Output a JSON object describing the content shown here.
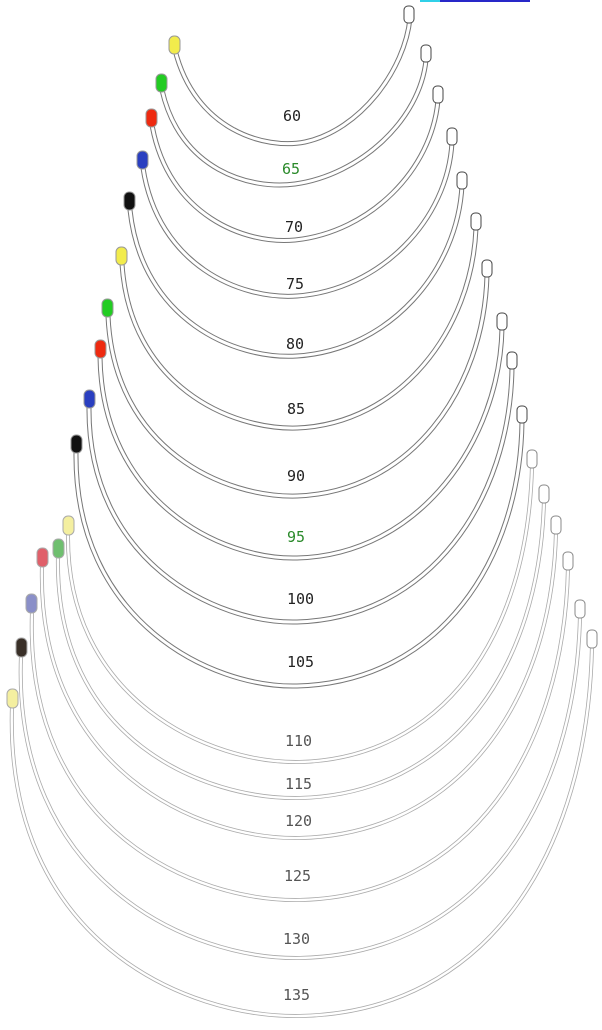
{
  "labels": {
    "s60": "60",
    "s65": "65",
    "s70": "70",
    "s75": "75",
    "s80": "80",
    "s85": "85",
    "s90": "90",
    "s95": "95",
    "s100": "100",
    "s105": "105",
    "s110": "110",
    "s115": "115",
    "s120": "120",
    "s125": "125",
    "s130": "130",
    "s135": "135"
  },
  "colors": {
    "yellow": "#f2ec4c",
    "green": "#22cc22",
    "red": "#ee2a10",
    "blue": "#2a3fc0",
    "black": "#111111",
    "pale_yellow": "#f4efa0",
    "pale_green": "#6fbf6f",
    "pale_red": "#e0606a",
    "pale_blue": "#8a8fc8",
    "dark_brown": "#3a3028",
    "label_dark": "#222222",
    "label_green": "#2a8a2a",
    "label_grey": "#555555",
    "accent_bar": "#2828c8",
    "accent_cyan": "#30d0e8"
  }
}
